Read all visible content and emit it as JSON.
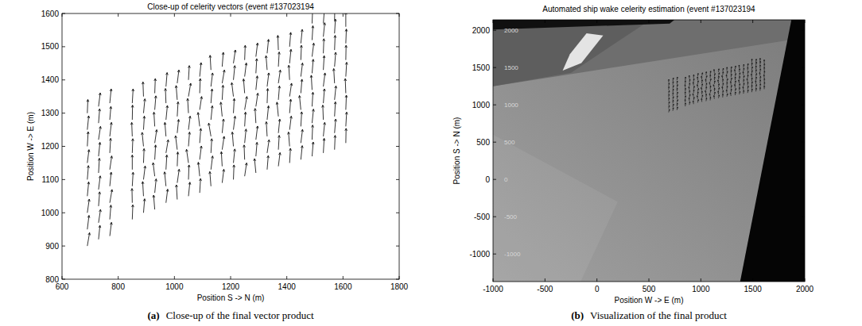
{
  "chart_data": [
    {
      "type": "quiver",
      "title": "Close-up of celerity vectors (event #137023194",
      "x_label": "Position S -> N (m)",
      "y_label": "Position W -> E (m)",
      "xlim": [
        600,
        1800
      ],
      "xticks": [
        600,
        800,
        1000,
        1200,
        1400,
        1600,
        1800
      ],
      "ylim": [
        800,
        1600
      ],
      "yticks": [
        800,
        900,
        1000,
        1100,
        1200,
        1300,
        1400,
        1500,
        1600
      ],
      "color": "#000000",
      "grid": false,
      "panel_label": "(a)",
      "caption": "Close-up of the final vector product",
      "vectors": [
        {
          "x": 690,
          "y": [
            900,
            950,
            1000,
            1050,
            1100,
            1150,
            1200,
            1250,
            1300
          ],
          "u": [
            8,
            6,
            7,
            5,
            4,
            6,
            3,
            5,
            2
          ],
          "v": [
            40,
            42,
            41,
            43,
            42,
            40,
            44,
            42,
            41
          ]
        },
        {
          "x": 730,
          "y": [
            920,
            970,
            1020,
            1070,
            1120,
            1170,
            1220,
            1270,
            1320
          ],
          "u": [
            5,
            7,
            4,
            6,
            3,
            5,
            7,
            4,
            6
          ],
          "v": [
            42,
            40,
            43,
            41,
            44,
            42,
            40,
            43,
            41
          ]
        },
        {
          "x": 770,
          "y": [
            930,
            980,
            1030,
            1080,
            1130,
            1180,
            1230,
            1280,
            1330
          ],
          "u": [
            6,
            4,
            8,
            5,
            7,
            3,
            6,
            4,
            5
          ],
          "v": [
            41,
            43,
            40,
            42,
            41,
            44,
            42,
            40,
            43
          ]
        },
        {
          "x": 850,
          "y": [
            980,
            1030,
            1080,
            1130,
            1180,
            1230,
            1280,
            1330
          ],
          "u": [
            2,
            -1,
            3,
            0,
            2,
            -2,
            1,
            3
          ],
          "v": [
            44,
            43,
            42,
            44,
            43,
            42,
            44,
            43
          ]
        },
        {
          "x": 890,
          "y": [
            1000,
            1050,
            1100,
            1150,
            1200,
            1250,
            1300,
            1350
          ],
          "u": [
            4,
            -3,
            6,
            2,
            -5,
            3,
            5,
            -2
          ],
          "v": [
            42,
            44,
            41,
            43,
            42,
            41,
            43,
            44
          ]
        },
        {
          "x": 930,
          "y": [
            1010,
            1060,
            1110,
            1160,
            1210,
            1260,
            1310,
            1360
          ],
          "u": [
            -4,
            5,
            -6,
            3,
            7,
            -3,
            4,
            2
          ],
          "v": [
            43,
            42,
            41,
            44,
            40,
            43,
            42,
            44
          ]
        },
        {
          "x": 970,
          "y": [
            1030,
            1080,
            1130,
            1180,
            1230,
            1280,
            1330,
            1380
          ],
          "u": [
            6,
            -5,
            3,
            8,
            -4,
            5,
            -2,
            4
          ],
          "v": [
            41,
            43,
            44,
            40,
            42,
            43,
            44,
            42
          ]
        },
        {
          "x": 1010,
          "y": [
            1040,
            1090,
            1140,
            1190,
            1240,
            1290,
            1340,
            1390
          ],
          "u": [
            -3,
            7,
            2,
            -6,
            5,
            3,
            -4,
            6
          ],
          "v": [
            44,
            41,
            43,
            42,
            41,
            44,
            43,
            40
          ]
        },
        {
          "x": 1050,
          "y": [
            1050,
            1100,
            1150,
            1200,
            1250,
            1300,
            1350,
            1400
          ],
          "u": [
            5,
            2,
            -7,
            4,
            6,
            -3,
            8,
            3
          ],
          "v": [
            42,
            44,
            41,
            43,
            41,
            44,
            40,
            43
          ]
        },
        {
          "x": 1090,
          "y": [
            1060,
            1110,
            1160,
            1210,
            1260,
            1310,
            1360,
            1410
          ],
          "u": [
            3,
            -5,
            6,
            4,
            -6,
            7,
            2,
            5
          ],
          "v": [
            43,
            42,
            41,
            44,
            42,
            40,
            44,
            42
          ]
        },
        {
          "x": 1130,
          "y": [
            1080,
            1130,
            1180,
            1230,
            1280,
            1330,
            1380,
            1430
          ],
          "u": [
            -4,
            6,
            3,
            -8,
            5,
            4,
            6,
            -3
          ],
          "v": [
            44,
            41,
            43,
            40,
            42,
            43,
            41,
            44
          ]
        },
        {
          "x": 1170,
          "y": [
            1090,
            1140,
            1190,
            1240,
            1290,
            1340,
            1390,
            1440
          ],
          "u": [
            6,
            -3,
            7,
            5,
            -5,
            3,
            8,
            4
          ],
          "v": [
            41,
            44,
            40,
            42,
            43,
            44,
            40,
            43
          ]
        },
        {
          "x": 1210,
          "y": [
            1100,
            1150,
            1200,
            1250,
            1300,
            1350,
            1400,
            1450
          ],
          "u": [
            2,
            5,
            -4,
            6,
            3,
            -6,
            5,
            7
          ],
          "v": [
            44,
            42,
            43,
            41,
            44,
            42,
            43,
            40
          ]
        },
        {
          "x": 1250,
          "y": [
            1110,
            1160,
            1210,
            1260,
            1310,
            1360,
            1410,
            1460
          ],
          "u": [
            7,
            -2,
            5,
            3,
            8,
            -4,
            6,
            2
          ],
          "v": [
            40,
            44,
            42,
            43,
            40,
            43,
            41,
            44
          ]
        },
        {
          "x": 1290,
          "y": [
            1120,
            1170,
            1220,
            1270,
            1320,
            1370,
            1420,
            1470
          ],
          "u": [
            -5,
            4,
            6,
            -3,
            7,
            5,
            3,
            6
          ],
          "v": [
            43,
            42,
            41,
            44,
            40,
            42,
            44,
            41
          ]
        },
        {
          "x": 1330,
          "y": [
            1130,
            1180,
            1230,
            1280,
            1330,
            1380,
            1430,
            1480
          ],
          "u": [
            4,
            7,
            -3,
            5,
            2,
            6,
            -4,
            5
          ],
          "v": [
            42,
            40,
            44,
            42,
            44,
            41,
            43,
            42
          ]
        },
        {
          "x": 1370,
          "y": [
            1140,
            1190,
            1240,
            1290,
            1340,
            1390,
            1440,
            1490
          ],
          "u": [
            6,
            3,
            5,
            -5,
            4,
            7,
            3,
            -2
          ],
          "v": [
            41,
            43,
            42,
            43,
            42,
            40,
            44,
            44
          ]
        },
        {
          "x": 1410,
          "y": [
            1150,
            1200,
            1250,
            1300,
            1350,
            1400,
            1450,
            1500
          ],
          "u": [
            3,
            -4,
            6,
            4,
            7,
            -3,
            5,
            4
          ],
          "v": [
            44,
            43,
            41,
            42,
            40,
            44,
            42,
            43
          ]
        },
        {
          "x": 1450,
          "y": [
            1160,
            1210,
            1260,
            1310,
            1360,
            1410,
            1460,
            1510
          ],
          "u": [
            5,
            6,
            3,
            -5,
            4,
            6,
            2,
            5
          ],
          "v": [
            42,
            41,
            44,
            43,
            42,
            41,
            44,
            42
          ]
        },
        {
          "x": 1490,
          "y": [
            1170,
            1220,
            1270,
            1320,
            1370,
            1420,
            1470,
            1520,
            1570
          ],
          "u": [
            4,
            2,
            5,
            3,
            -3,
            4,
            6,
            3,
            2
          ],
          "v": [
            43,
            44,
            42,
            43,
            44,
            42,
            41,
            43,
            44
          ]
        },
        {
          "x": 1530,
          "y": [
            1180,
            1230,
            1280,
            1330,
            1380,
            1430,
            1480,
            1530,
            1570
          ],
          "u": [
            3,
            5,
            -2,
            4,
            6,
            3,
            2,
            5,
            4
          ],
          "v": [
            44,
            42,
            44,
            43,
            41,
            43,
            44,
            42,
            43
          ]
        },
        {
          "x": 1570,
          "y": [
            1190,
            1240,
            1290,
            1340,
            1390,
            1440,
            1490,
            1540,
            1580
          ],
          "u": [
            2,
            4,
            3,
            5,
            -3,
            4,
            2,
            3,
            1
          ],
          "v": [
            43,
            42,
            44,
            42,
            44,
            43,
            44,
            43,
            44
          ]
        },
        {
          "x": 1610,
          "y": [
            1210,
            1260,
            1310,
            1360,
            1410,
            1460,
            1510,
            1560
          ],
          "u": [
            1,
            3,
            2,
            -2,
            3,
            1,
            2,
            0
          ],
          "v": [
            44,
            43,
            44,
            44,
            43,
            44,
            43,
            44
          ]
        }
      ]
    },
    {
      "type": "image",
      "title": "Automated ship wake celerity estimation (event #137023194",
      "x_label": "Position W -> E (m)",
      "y_label": "Position S -> N (m)",
      "xlim": [
        -1000,
        2000
      ],
      "xticks": [
        -1000,
        -500,
        0,
        500,
        1000,
        1500,
        2000
      ],
      "ylim": [
        -1370,
        2140
      ],
      "yticks": [
        -1000,
        -500,
        0,
        500,
        1000,
        1500,
        2000
      ],
      "image_labels": [
        2000,
        1500,
        1000,
        500,
        0,
        -500,
        -1000
      ],
      "color": "#000000",
      "grid": false,
      "panel_label": "(b)",
      "caption": "Visualization of the final product"
    }
  ]
}
